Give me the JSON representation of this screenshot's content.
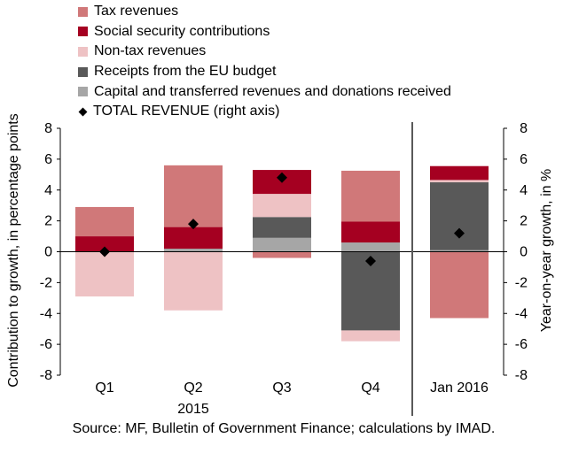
{
  "legend": {
    "items": [
      {
        "label": "Tax revenues",
        "color": "#d07879"
      },
      {
        "label": "Social security contributions",
        "color": "#a50021"
      },
      {
        "label": "Non-tax revenues",
        "color": "#eec2c4"
      },
      {
        "label": "Receipts from the EU budget",
        "color": "#595959"
      },
      {
        "label": "Capital and transferred revenues and donations received",
        "color": "#a6a6a6"
      }
    ],
    "marker_label": "TOTAL REVENUE (right axis)"
  },
  "source": "Source: MF, Bulletin of Government Finance; calculations by IMAD.",
  "chart_data": {
    "type": "bar",
    "stacked": true,
    "categories": [
      "Q1",
      "Q2",
      "Q3",
      "Q4",
      "Jan 2016"
    ],
    "group_label": "2015",
    "group_label_under": "Q2",
    "ylabel": "Contribution to growth, in percentage points",
    "y2label": "Year-on-year growth, in %",
    "ylim": [
      -8,
      8
    ],
    "y2lim": [
      -8,
      8
    ],
    "yticks": [
      -8,
      -6,
      -4,
      -2,
      0,
      2,
      4,
      6,
      8
    ],
    "series": [
      {
        "name": "Capital and transferred revenues and donations received",
        "color": "#a6a6a6",
        "values": [
          0.0,
          0.2,
          0.9,
          0.6,
          0.1
        ]
      },
      {
        "name": "Receipts from the EU budget",
        "color": "#595959",
        "values": [
          0.0,
          0.0,
          1.35,
          0.0,
          4.4
        ]
      },
      {
        "name": "Non-tax revenues",
        "color": "#eec2c4",
        "values": [
          -2.9,
          -3.8,
          1.5,
          -0.7,
          0.15
        ]
      },
      {
        "name": "Social security contributions",
        "color": "#a50021",
        "values": [
          1.0,
          1.4,
          1.55,
          1.35,
          0.9
        ]
      },
      {
        "name": "Tax revenues",
        "color": "#d07879",
        "values": [
          1.9,
          4.0,
          -0.4,
          3.3,
          -4.3
        ]
      },
      {
        "name": "TOTAL REVENUE (right axis)",
        "kind": "marker",
        "values": [
          0.0,
          1.8,
          4.8,
          -0.6,
          1.2
        ]
      }
    ],
    "extra_negative": {
      "series": "Receipts from the EU budget",
      "values": [
        0.0,
        0.0,
        0.0,
        -5.1,
        0.0
      ]
    },
    "divider_after_category": "Q4"
  }
}
